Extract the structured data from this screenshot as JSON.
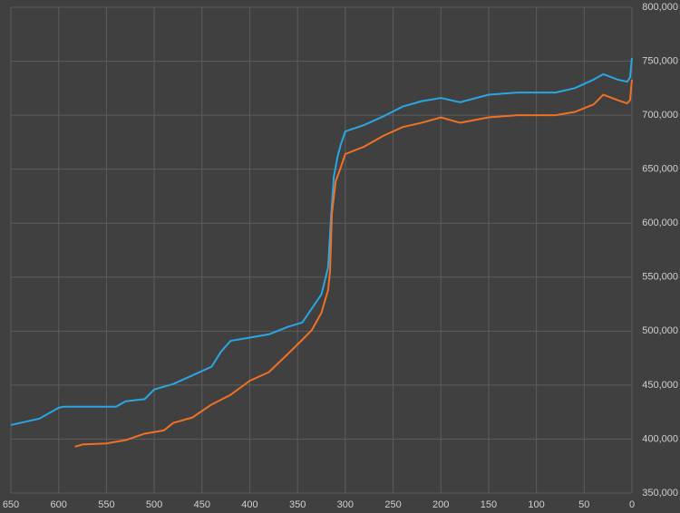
{
  "chart_data": {
    "type": "line",
    "xlim": [
      650,
      0
    ],
    "xticks": [
      650,
      600,
      550,
      500,
      450,
      400,
      350,
      300,
      250,
      200,
      150,
      100,
      50,
      0
    ],
    "ylim": [
      350000,
      800000
    ],
    "yticks": [
      {
        "value": 350000,
        "label": "350,000"
      },
      {
        "value": 400000,
        "label": "400,000"
      },
      {
        "value": 450000,
        "label": "450,000"
      },
      {
        "value": 500000,
        "label": "500,000"
      },
      {
        "value": 550000,
        "label": "550,000"
      },
      {
        "value": 600000,
        "label": "600,000"
      },
      {
        "value": 650000,
        "label": "650,000"
      },
      {
        "value": 700000,
        "label": "700,000"
      },
      {
        "value": 750000,
        "label": "750,000"
      },
      {
        "value": 800000,
        "label": "800,000"
      }
    ],
    "grid": true,
    "series": [
      {
        "color": "#2aa6e4",
        "x": [
          650,
          620,
          610,
          600,
          595,
          540,
          530,
          510,
          500,
          480,
          460,
          440,
          430,
          420,
          400,
          380,
          360,
          345,
          335,
          325,
          318,
          315,
          312,
          308,
          305,
          300,
          280,
          260,
          240,
          220,
          200,
          180,
          150,
          120,
          80,
          60,
          40,
          30,
          15,
          5,
          2,
          0
        ],
        "values": [
          413000,
          419000,
          424000,
          429000,
          430000,
          430000,
          435000,
          437000,
          446000,
          451000,
          459000,
          467000,
          481000,
          491000,
          494000,
          497000,
          504000,
          508000,
          521000,
          534000,
          559000,
          605000,
          643000,
          662000,
          672000,
          685000,
          691000,
          699000,
          708000,
          713000,
          716000,
          712000,
          719000,
          721000,
          721000,
          725000,
          733000,
          738000,
          733000,
          731000,
          735000,
          753000
        ]
      },
      {
        "color": "#f07125",
        "x": [
          583,
          575,
          550,
          530,
          510,
          490,
          480,
          460,
          440,
          420,
          400,
          380,
          360,
          345,
          335,
          325,
          318,
          316,
          314,
          310,
          305,
          300,
          280,
          260,
          240,
          220,
          200,
          180,
          150,
          120,
          80,
          60,
          40,
          30,
          15,
          5,
          2,
          0
        ],
        "values": [
          393000,
          395000,
          396000,
          399000,
          405000,
          408000,
          415000,
          420000,
          432000,
          441000,
          454000,
          462000,
          479000,
          492000,
          501000,
          517000,
          538000,
          555000,
          609000,
          639000,
          651000,
          664000,
          671000,
          681000,
          689000,
          693000,
          698000,
          693000,
          698000,
          700000,
          700000,
          703000,
          710000,
          719000,
          714000,
          711000,
          714000,
          733000
        ]
      }
    ]
  }
}
